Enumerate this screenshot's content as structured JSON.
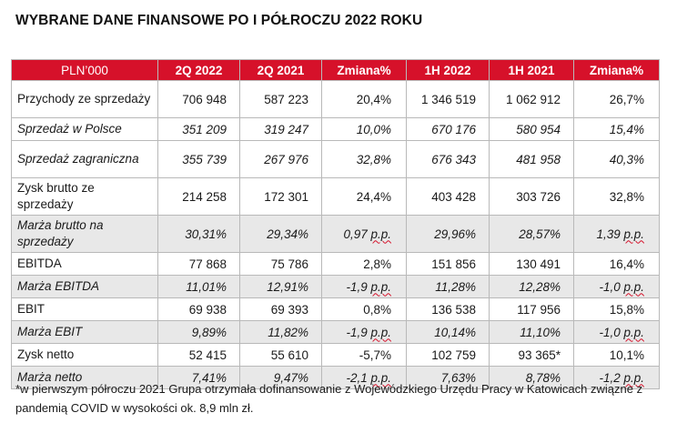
{
  "title": "WYBRANE DANE FINANSOWE PO I PÓŁROCZU 2022 ROKU",
  "colors": {
    "header_bg": "#d6112a",
    "header_text": "#ffffff",
    "shade": "#e8e8e8"
  },
  "table": {
    "headers": [
      "PLN’000",
      "2Q 2022",
      "2Q 2021",
      "Zmiana%",
      "1H 2022",
      "1H 2021",
      "Zmiana%"
    ],
    "rows": [
      {
        "label": "Przychody ze sprzedaży",
        "cells": [
          "706 948",
          "587 223",
          "20,4%",
          "1 346 519",
          "1 062 912",
          "26,7%"
        ]
      },
      {
        "label": "Sprzedaż w Polsce",
        "cells": [
          "351 209",
          "319 247",
          "10,0%",
          "670 176",
          "580 954",
          "15,4%"
        ]
      },
      {
        "label": "Sprzedaż zagraniczna",
        "cells": [
          "355 739",
          "267 976",
          "32,8%",
          "676 343",
          "481 958",
          "40,3%"
        ]
      },
      {
        "label": "Zysk brutto ze sprzedaży",
        "cells": [
          "214 258",
          "172 301",
          "24,4%",
          "403 428",
          "303 726",
          "32,8%"
        ]
      },
      {
        "label": "Marża brutto na sprzedaży",
        "cells": [
          "30,31%",
          "29,34%",
          "0,97 p.p.",
          "29,96%",
          "28,57%",
          "1,39 p.p."
        ]
      },
      {
        "label": "EBITDA",
        "cells": [
          "77 868",
          "75 786",
          "2,8%",
          "151 856",
          "130 491",
          "16,4%"
        ]
      },
      {
        "label": "Marża EBITDA",
        "cells": [
          "11,01%",
          "12,91%",
          "-1,9 p.p.",
          "11,28%",
          "12,28%",
          "-1,0 p.p."
        ]
      },
      {
        "label": "EBIT",
        "cells": [
          "69 938",
          "69 393",
          "0,8%",
          "136 538",
          "117 956",
          "15,8%"
        ]
      },
      {
        "label": "Marża EBIT",
        "cells": [
          "9,89%",
          "11,82%",
          "-1,9 p.p.",
          "10,14%",
          "11,10%",
          "-1,0 p.p."
        ]
      },
      {
        "label": "Zysk netto",
        "cells": [
          "52 415",
          "55 610",
          "-5,7%",
          "102 759",
          "93 365*",
          "10,1%"
        ]
      },
      {
        "label": "Marża netto",
        "cells": [
          "7,41%",
          "9,47%",
          "-2,1 p.p.",
          "7,63%",
          "8,78%",
          "-1,2 p.p."
        ]
      }
    ]
  },
  "footnote": "*w pierwszym półroczu 2021 Grupa otrzymała dofinansowanie z Wojewódzkiego Urzędu Pracy w Katowicach związne z pandemią COVID w wysokości ok. 8,9 mln zł."
}
